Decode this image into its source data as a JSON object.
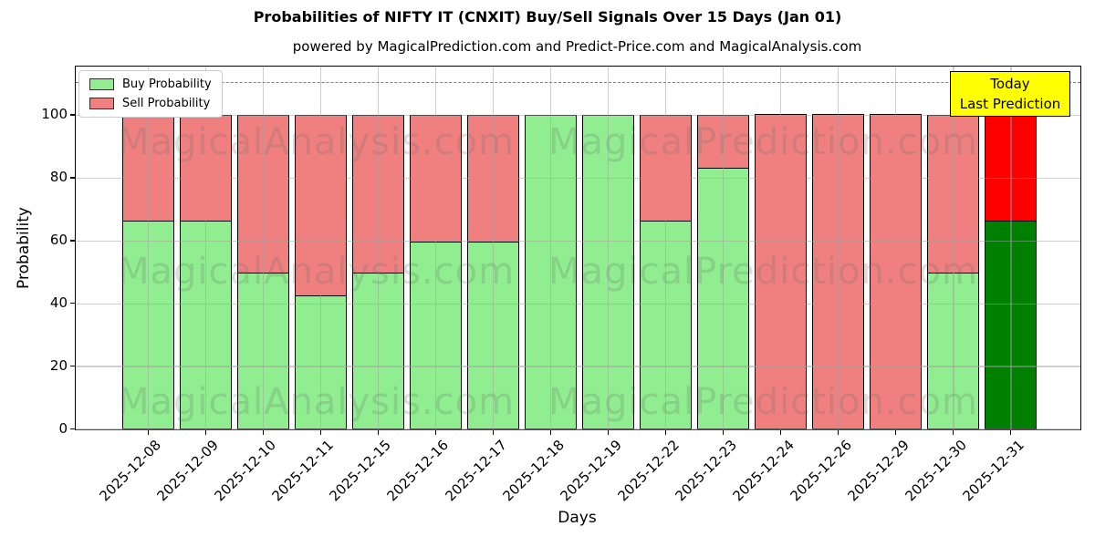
{
  "title": "Probabilities of NIFTY IT (CNXIT) Buy/Sell Signals Over 15 Days (Jan 01)",
  "subtitle": "powered by MagicalPrediction.com and Predict-Price.com and MagicalAnalysis.com",
  "legend": {
    "buy_label": "Buy Probability",
    "sell_label": "Sell Probability"
  },
  "annotation_box": {
    "line1": "Today",
    "line2": "Last Prediction",
    "bg_color": "#FFFF00"
  },
  "watermarks": [
    "MagicalAnalysis.com",
    "MagicalPrediction.com"
  ],
  "colors": {
    "buy": "#90EE90",
    "sell": "#F08080",
    "today_buy": "#008000",
    "today_sell": "#FF0000",
    "bar_edge": "#000000",
    "grid": "#b0b0b0",
    "dashed_line": "#7f7f7f"
  },
  "chart_data": {
    "type": "bar",
    "stacked": true,
    "title": "Probabilities of NIFTY IT (CNXIT) Buy/Sell Signals Over 15 Days (Jan 01)",
    "xlabel": "Days",
    "ylabel": "Probability",
    "categories": [
      "2025-12-08",
      "2025-12-09",
      "2025-12-10",
      "2025-12-11",
      "2025-12-15",
      "2025-12-16",
      "2025-12-17",
      "2025-12-18",
      "2025-12-19",
      "2025-12-22",
      "2025-12-23",
      "2025-12-24",
      "2025-12-26",
      "2025-12-29",
      "2025-12-30",
      "2025-12-31"
    ],
    "series": [
      {
        "name": "Buy Probability",
        "color": "#90EE90",
        "values": [
          66.67,
          66.67,
          50,
          42.86,
          50,
          60,
          60,
          100,
          100,
          66.67,
          83.33,
          0,
          0,
          0,
          50,
          66.67
        ]
      },
      {
        "name": "Sell Probability",
        "color": "#F08080",
        "values": [
          33.33,
          33.33,
          50,
          57.14,
          50,
          40,
          40,
          0,
          0,
          33.33,
          16.67,
          100,
          100,
          100,
          50,
          33.33
        ]
      }
    ],
    "today_bar": {
      "category": "2025-12-31",
      "index": 15,
      "buy_color": "#008000",
      "sell_color": "#FF0000"
    },
    "yticks": [
      0,
      20,
      40,
      60,
      80,
      100
    ],
    "ylim": [
      0,
      115.5
    ],
    "dashed_line_y": 110.7,
    "grid": true,
    "legend_position": "upper left"
  }
}
